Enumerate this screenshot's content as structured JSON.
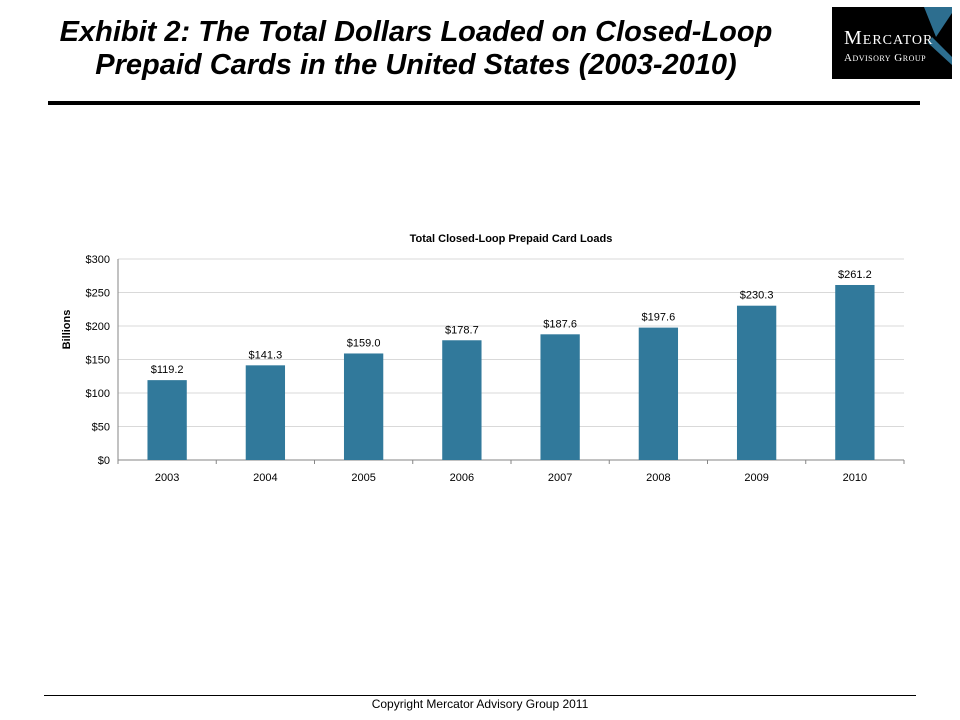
{
  "header": {
    "title_line1": "Exhibit 2: The Total Dollars Loaded on Closed-Loop",
    "title_line2": "Prepaid Cards in the United States (2003-2010)"
  },
  "logo": {
    "name": "Mercator",
    "sub": "Advisory Group"
  },
  "footer": {
    "copyright": "Copyright Mercator Advisory Group 2011"
  },
  "colors": {
    "bar": "#31799B",
    "grid": "#D9D9D9",
    "axis": "#868686",
    "logo_accent": "#2D6E8F"
  },
  "chart_data": {
    "type": "bar",
    "title": "Total Closed-Loop Prepaid Card Loads",
    "ylabel": "Billions",
    "xlabel": "",
    "categories": [
      "2003",
      "2004",
      "2005",
      "2006",
      "2007",
      "2008",
      "2009",
      "2010"
    ],
    "values": [
      119.2,
      141.3,
      159.0,
      178.7,
      187.6,
      197.6,
      230.3,
      261.2
    ],
    "data_labels": [
      "$119.2",
      "$141.3",
      "$159.0",
      "$178.7",
      "$187.6",
      "$197.6",
      "$230.3",
      "$261.2"
    ],
    "ylim": [
      0,
      300
    ],
    "yticks": [
      0,
      50,
      100,
      150,
      200,
      250,
      300
    ],
    "ytick_labels": [
      "$0",
      "$50",
      "$100",
      "$150",
      "$200",
      "$250",
      "$300"
    ],
    "grid": true,
    "legend": "none"
  }
}
